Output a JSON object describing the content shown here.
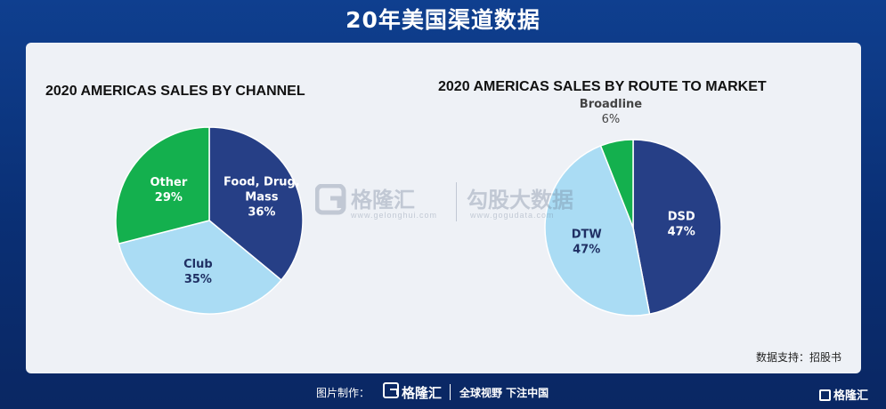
{
  "banner": {
    "title": "20年美国渠道数据"
  },
  "colors": {
    "dark_blue": "#263f86",
    "light_blue": "#aadcf4",
    "green": "#14b04e",
    "card_bg": "#eef1f6"
  },
  "chart_data": [
    {
      "type": "pie",
      "title": "2020 AMERICAS SALES BY CHANNEL",
      "slices": [
        {
          "name": "Food, Drug,\nMass",
          "value": 36,
          "label": "36%",
          "color": "#263f86",
          "text_color": "#ffffff"
        },
        {
          "name": "Club",
          "value": 35,
          "label": "35%",
          "color": "#aadcf4",
          "text_color": "#1f2f63"
        },
        {
          "name": "Other",
          "value": 29,
          "label": "29%",
          "color": "#14b04e",
          "text_color": "#ffffff"
        }
      ]
    },
    {
      "type": "pie",
      "title": "2020 AMERICAS SALES BY ROUTE TO MARKET",
      "slices": [
        {
          "name": "DSD",
          "value": 47,
          "label": "47%",
          "color": "#263f86",
          "text_color": "#ffffff"
        },
        {
          "name": "DTW",
          "value": 47,
          "label": "47%",
          "color": "#aadcf4",
          "text_color": "#1f2f63"
        },
        {
          "name": "Broadline",
          "value": 6,
          "label": "6%",
          "color": "#14b04e",
          "text_color": "#444444",
          "outside": true
        }
      ]
    }
  ],
  "watermark": {
    "brand": "格隆汇",
    "brand_url": "www.gelonghui.com",
    "partner": "勾股大数据",
    "partner_url": "www.gogudata.com"
  },
  "source_note": "数据支持：招股书",
  "footer": {
    "made_by": "图片制作：",
    "brand": "格隆汇",
    "slogan": "全球视野 下注中国"
  },
  "corner_logo": "格隆汇"
}
